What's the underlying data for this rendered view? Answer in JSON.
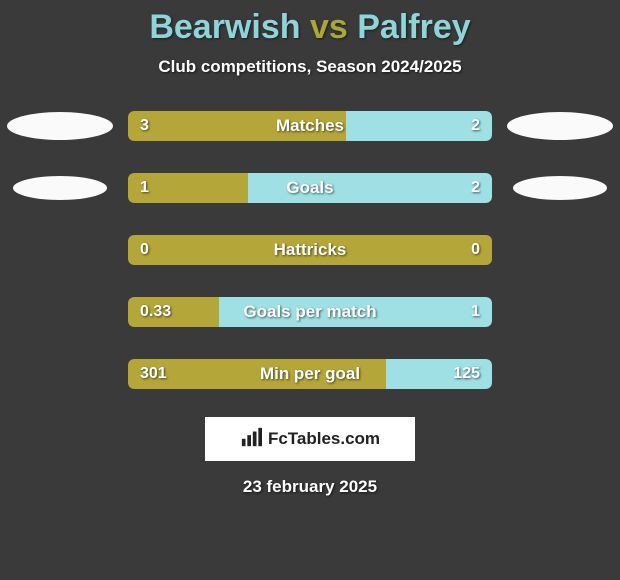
{
  "title": {
    "player1": "Bearwish",
    "vs": "vs",
    "player2": "Palfrey"
  },
  "subtitle": "Club competitions, Season 2024/2025",
  "colors": {
    "left": "#b5a63a",
    "right": "#9ee0e4",
    "player1_text": "#8fd4d9",
    "vs_text": "#a8a838",
    "player2_text": "#8fd4d9",
    "background": "#3a3a3a"
  },
  "stats": [
    {
      "label": "Matches",
      "left_val": "3",
      "right_val": "2",
      "left_pct": 60,
      "right_pct": 40,
      "show_badges": true,
      "badge_size": "large"
    },
    {
      "label": "Goals",
      "left_val": "1",
      "right_val": "2",
      "left_pct": 33,
      "right_pct": 67,
      "show_badges": true,
      "badge_size": "small"
    },
    {
      "label": "Hattricks",
      "left_val": "0",
      "right_val": "0",
      "left_pct": 100,
      "right_pct": 0,
      "show_badges": false
    },
    {
      "label": "Goals per match",
      "left_val": "0.33",
      "right_val": "1",
      "left_pct": 25,
      "right_pct": 75,
      "show_badges": false
    },
    {
      "label": "Min per goal",
      "left_val": "301",
      "right_val": "125",
      "left_pct": 71,
      "right_pct": 29,
      "show_badges": false
    }
  ],
  "footer": {
    "brand": "FcTables.com",
    "icon": "bar-chart-icon"
  },
  "date": "23 february 2025"
}
